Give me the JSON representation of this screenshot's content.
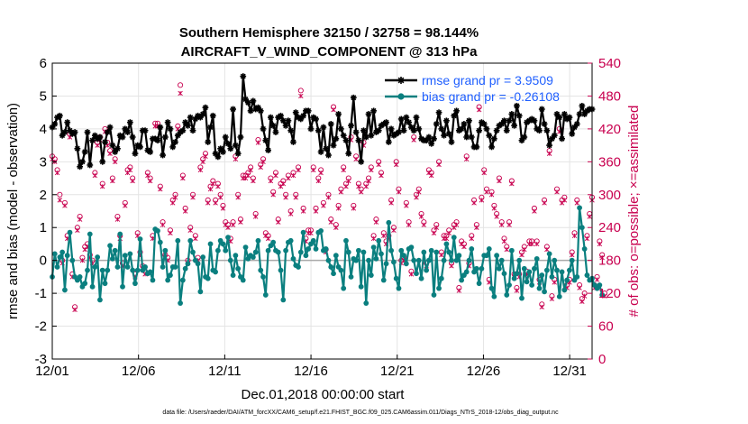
{
  "chart_data": {
    "type": "line",
    "title_line1": "Southern Hemisphere 32150 / 32758 = 98.144%",
    "title_line2": "AIRCRAFT_V_WIND_COMPONENT @ 313 hPa",
    "xlabel": "Dec.01,2018 00:00:00 start",
    "ylabel_left": "rmse and bias (model - observation)",
    "ylabel_right": "# of obs: o=possible; ×=assimilated",
    "footnote": "data file: /Users/raeder/DAI/ATM_forcXX/CAM6_setup/f.e21.FHIST_BGC.f09_025.CAM6assim.011/Diags_NTrS_2018-12/obs_diag_output.nc",
    "xlim": [
      1,
      32.3
    ],
    "ylim_left": [
      -3,
      6
    ],
    "ylim_right": [
      0,
      540
    ],
    "x_ticks": [
      1,
      6,
      11,
      16,
      21,
      26,
      31
    ],
    "x_tick_labels": [
      "12/01",
      "12/06",
      "12/11",
      "12/16",
      "12/21",
      "12/26",
      "12/31"
    ],
    "y_ticks_left": [
      -3,
      -2,
      -1,
      0,
      1,
      2,
      3,
      4,
      5,
      6
    ],
    "y_ticks_right": [
      0,
      60,
      120,
      180,
      240,
      300,
      360,
      420,
      480,
      540
    ],
    "grid": true,
    "legend": [
      {
        "label": "rmse grand pr = 3.9509",
        "color": "#000000",
        "marker": "asterisk"
      },
      {
        "label": "bias grand pr = -0.26108",
        "color": "#0a7f7f",
        "marker": "circle"
      }
    ],
    "colors": {
      "rmse": "#000000",
      "bias": "#0a7f7f",
      "obs": "#c8004f",
      "zero_line": "#aaaaaa"
    },
    "rmse": [
      4.05,
      4.15,
      4.35,
      4.4,
      3.8,
      3.9,
      4.2,
      3.95,
      3.85,
      3.9,
      3.4,
      2.85,
      3.0,
      3.3,
      3.9,
      2.9,
      3.65,
      3.8,
      3.7,
      3.75,
      3.0,
      3.6,
      3.9,
      4.05,
      3.5,
      3.3,
      3.4,
      3.8,
      3.75,
      4.0,
      3.9,
      4.2,
      3.75,
      3.25,
      3.5,
      3.45,
      3.95,
      3.95,
      3.35,
      3.3,
      3.7,
      3.7,
      3.65,
      4.05,
      3.2,
      3.75,
      4.2,
      4.0,
      3.45,
      3.6,
      3.8,
      3.9,
      3.95,
      4.2,
      4.1,
      4.35,
      3.95,
      4.3,
      4.4,
      4.35,
      4.45,
      4.65,
      3.6,
      4.05,
      4.4,
      3.25,
      3.15,
      3.4,
      3.3,
      3.75,
      3.55,
      3.4,
      4.6,
      3.5,
      3.25,
      3.75,
      5.6,
      4.9,
      4.8,
      4.55,
      4.85,
      4.6,
      4.65,
      4.55,
      4.0,
      3.65,
      3.35,
      4.35,
      4.1,
      3.9,
      4.35,
      4.4,
      4.25,
      4.1,
      4.25,
      3.95,
      3.6,
      4.5,
      4.35,
      4.3,
      4.4,
      4.55,
      4.55,
      4.0,
      4.35,
      4.3,
      3.95,
      3.3,
      4.05,
      3.4,
      3.2,
      4.15,
      3.5,
      3.7,
      4.45,
      4.0,
      3.8,
      3.65,
      3.25,
      4.1,
      4.95,
      3.9,
      3.65,
      3.0,
      3.95,
      3.75,
      4.45,
      3.8,
      4.55,
      3.9,
      3.95,
      4.1,
      4.15,
      4.2,
      3.6,
      4.0,
      3.8,
      3.85,
      3.9,
      4.3,
      3.95,
      4.35,
      4.2,
      4.05,
      3.95,
      4.35,
      4.0,
      3.7,
      3.65,
      3.65,
      3.75,
      3.55,
      3.7,
      4.15,
      4.5,
      4.0,
      3.8,
      4.25,
      3.85,
      3.6,
      4.4,
      4.55,
      3.95,
      4.0,
      4.15,
      3.75,
      4.25,
      3.75,
      3.45,
      3.45,
      3.95,
      4.2,
      4.15,
      4.0,
      3.8,
      3.45,
      3.7,
      3.95,
      4.1,
      4.15,
      4.25,
      3.95,
      4.25,
      4.45,
      4.1,
      4.7,
      4.4,
      3.65,
      3.75,
      4.2,
      4.25,
      4.3,
      4.25,
      4.0,
      3.95,
      4.6,
      4.15,
      3.95,
      3.5,
      3.7,
      3.8,
      4.45,
      4.35,
      3.7,
      4.45,
      4.3,
      4.35,
      3.85,
      4.05,
      4.15,
      4.45,
      4.7,
      4.45,
      4.55,
      4.6,
      4.6
    ],
    "bias": [
      -0.5,
      0.2,
      -0.2,
      0.1,
      0.25,
      -0.9,
      0.15,
      0.85,
      0.0,
      -0.5,
      -0.6,
      -0.5,
      -0.8,
      -0.7,
      -0.3,
      0.8,
      -0.8,
      -0.2,
      0.1,
      -1.2,
      -0.3,
      -0.7,
      -0.3,
      0.45,
      0.05,
      0.3,
      -0.2,
      0.8,
      -0.8,
      0.15,
      -0.2,
      0.2,
      -0.3,
      -0.7,
      -0.3,
      0.65,
      -0.3,
      -0.2,
      -0.4,
      -0.35,
      -0.6,
      0.95,
      0.9,
      0.55,
      -0.2,
      0.3,
      -0.6,
      -0.45,
      -0.2,
      -0.2,
      0.6,
      -1.3,
      -0.6,
      -0.25,
      -0.1,
      0.6,
      0.25,
      0.0,
      -0.1,
      -0.95,
      0.1,
      -0.5,
      -0.55,
      0.5,
      -0.3,
      -0.35,
      0.3,
      0.6,
      0.5,
      0.3,
      0.7,
      0.0,
      -0.45,
      0.15,
      -0.25,
      -0.5,
      -0.6,
      0.4,
      0.05,
      0.15,
      0.1,
      0.25,
      0.6,
      -0.3,
      -0.5,
      -1.05,
      0.3,
      0.45,
      0.55,
      0.3,
      0.25,
      -0.3,
      -1.2,
      0.3,
      0.55,
      0.6,
      0.05,
      -0.15,
      -0.2,
      0.25,
      0.85,
      0.15,
      0.35,
      0.5,
      0.6,
      0.35,
      0.85,
      0.9,
      0.3,
      0.35,
      0.0,
      -0.2,
      -0.4,
      0.15,
      -0.2,
      -0.3,
      -0.85,
      0.6,
      0.25,
      -0.5,
      0.05,
      0.0,
      0.3,
      -0.8,
      0.25,
      -1.3,
      0.0,
      -0.45,
      0.4,
      0.05,
      0.6,
      0.2,
      -0.6,
      -0.1,
      1.15,
      0.3,
      -0.05,
      -0.55,
      -0.85,
      0.3,
      0.15,
      -0.1,
      0.35,
      0.4,
      0.0,
      -0.4,
      0.0,
      -0.55,
      0.25,
      -0.3,
      0.0,
      0.3,
      -1.05,
      0.25,
      -0.85,
      -0.55,
      0.0,
      0.5,
      0.25,
      0.0,
      0.7,
      0.0,
      0.15,
      -0.6,
      -0.45,
      -0.35,
      0.0,
      0.35,
      -0.35,
      -0.25,
      -0.7,
      -0.25,
      0.15,
      0.15,
      0.35,
      -0.85,
      -1.1,
      0.15,
      -0.25,
      0.0,
      -0.4,
      -1.05,
      -0.75,
      0.3,
      -0.55,
      -0.4,
      0.0,
      -1.15,
      -0.25,
      -0.65,
      -0.35,
      -0.75,
      -0.25,
      0.05,
      -0.85,
      -0.45,
      -0.95,
      -0.3,
      0.2,
      -0.5,
      0.0,
      -0.3,
      -1.1,
      -0.35,
      -0.9,
      -0.6,
      -0.3,
      0.0,
      -0.6,
      -0.5,
      1.6,
      1.0,
      0.35,
      -0.45,
      -0.6,
      -0.55,
      -0.75,
      -0.85,
      -0.75,
      -1.05
    ],
    "obs_possible": [
      370,
      365,
      345,
      300,
      180,
      285,
      225,
      410,
      155,
      95,
      240,
      260,
      185,
      205,
      210,
      190,
      180,
      340,
      395,
      405,
      320,
      420,
      395,
      380,
      330,
      365,
      260,
      225,
      175,
      285,
      345,
      350,
      330,
      155,
      230,
      195,
      170,
      160,
      340,
      330,
      225,
      430,
      430,
      315,
      250,
      190,
      185,
      235,
      290,
      300,
      425,
      500,
      335,
      275,
      180,
      240,
      300,
      225,
      185,
      350,
      365,
      375,
      290,
      315,
      325,
      290,
      320,
      300,
      280,
      250,
      245,
      220,
      250,
      370,
      300,
      255,
      335,
      335,
      340,
      350,
      330,
      265,
      400,
      355,
      365,
      230,
      225,
      330,
      305,
      340,
      255,
      320,
      325,
      300,
      335,
      270,
      340,
      300,
      350,
      490,
      275,
      220,
      235,
      235,
      350,
      275,
      330,
      345,
      285,
      200,
      300,
      255,
      460,
      245,
      280,
      310,
      350,
      320,
      330,
      405,
      280,
      370,
      320,
      310,
      395,
      320,
      330,
      350,
      225,
      255,
      360,
      340,
      230,
      215,
      225,
      290,
      240,
      360,
      310,
      180,
      185,
      285,
      250,
      160,
      405,
      300,
      310,
      265,
      250,
      175,
      345,
      340,
      235,
      245,
      360,
      195,
      225,
      225,
      235,
      175,
      245,
      250,
      130,
      215,
      210,
      370,
      175,
      225,
      290,
      245,
      460,
      295,
      345,
      310,
      145,
      305,
      280,
      265,
      330,
      250,
      220,
      205,
      250,
      325,
      155,
      130,
      155,
      195,
      205,
      160,
      215,
      215,
      275,
      215,
      145,
      100,
      290,
      205,
      380,
      115,
      145,
      310,
      420,
      290,
      295,
      135,
      145,
      195,
      230,
      290,
      135,
      110,
      120,
      225,
      265,
      295,
      135,
      150,
      215,
      190,
      120
    ],
    "obs_assimilated": [
      365,
      360,
      340,
      290,
      175,
      280,
      220,
      405,
      150,
      90,
      235,
      255,
      180,
      200,
      205,
      185,
      175,
      335,
      390,
      400,
      315,
      415,
      390,
      375,
      325,
      360,
      255,
      220,
      170,
      280,
      340,
      345,
      325,
      150,
      225,
      190,
      165,
      155,
      335,
      325,
      220,
      425,
      425,
      310,
      245,
      185,
      180,
      230,
      285,
      295,
      420,
      485,
      330,
      270,
      175,
      235,
      295,
      220,
      180,
      345,
      360,
      370,
      285,
      310,
      320,
      285,
      315,
      295,
      275,
      245,
      240,
      215,
      245,
      365,
      295,
      250,
      330,
      330,
      335,
      345,
      325,
      260,
      395,
      350,
      360,
      225,
      220,
      325,
      300,
      335,
      250,
      315,
      320,
      295,
      330,
      265,
      335,
      295,
      345,
      480,
      270,
      215,
      230,
      230,
      345,
      270,
      325,
      340,
      280,
      195,
      295,
      250,
      455,
      240,
      275,
      305,
      345,
      315,
      325,
      400,
      275,
      365,
      315,
      305,
      390,
      315,
      325,
      345,
      220,
      250,
      355,
      335,
      225,
      210,
      220,
      285,
      235,
      355,
      305,
      175,
      180,
      280,
      245,
      155,
      400,
      295,
      305,
      260,
      245,
      170,
      340,
      335,
      230,
      240,
      355,
      190,
      220,
      220,
      230,
      170,
      240,
      245,
      125,
      210,
      205,
      365,
      170,
      220,
      285,
      240,
      455,
      290,
      340,
      305,
      140,
      300,
      275,
      260,
      325,
      245,
      215,
      200,
      245,
      320,
      150,
      125,
      150,
      190,
      200,
      155,
      210,
      210,
      270,
      210,
      140,
      95,
      285,
      200,
      375,
      110,
      140,
      305,
      415,
      285,
      290,
      130,
      140,
      190,
      225,
      285,
      130,
      105,
      115,
      220,
      260,
      290,
      130,
      145,
      210,
      185,
      115
    ]
  }
}
